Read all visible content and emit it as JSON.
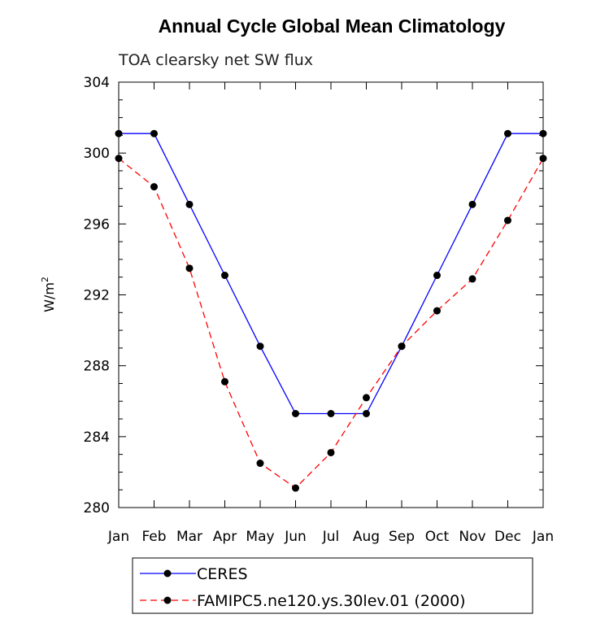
{
  "chart_data": {
    "type": "line",
    "title": "Annual Cycle Global Mean Climatology",
    "subtitle": "TOA clearsky net SW flux",
    "ylabel": "W/m",
    "ylabel_superscript": "2",
    "ylim": [
      280,
      304
    ],
    "yticks": [
      280,
      284,
      288,
      292,
      296,
      300,
      304
    ],
    "categories": [
      "Jan",
      "Feb",
      "Mar",
      "Apr",
      "May",
      "Jun",
      "Jul",
      "Aug",
      "Sep",
      "Oct",
      "Nov",
      "Dec",
      "Jan"
    ],
    "series": [
      {
        "name": "CERES",
        "color": "#0000ff",
        "dash": "solid",
        "values": [
          301.1,
          301.1,
          297.1,
          293.1,
          289.1,
          285.3,
          285.3,
          285.3,
          289.1,
          293.1,
          297.1,
          301.1,
          301.1
        ]
      },
      {
        "name": "FAMIPC5.ne120.ys.30lev.01 (2000)",
        "color": "#ff0000",
        "dash": "dashed",
        "values": [
          299.7,
          298.1,
          293.5,
          287.1,
          282.5,
          281.1,
          283.1,
          286.2,
          289.1,
          291.1,
          292.9,
          296.2,
          299.7
        ]
      }
    ],
    "grid": false,
    "legend_position": "bottom"
  }
}
